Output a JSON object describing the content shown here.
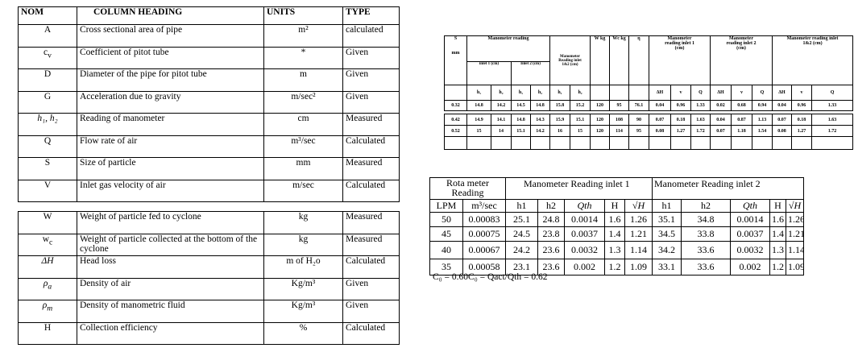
{
  "variables_table": {
    "headers": {
      "nom": "NOM",
      "heading": "COLUMN HEADING",
      "units": "UNITS",
      "type": "TYPE"
    },
    "rows": [
      {
        "nom": "A",
        "sub": "",
        "heading": "Cross sectional area of pipe",
        "units": "m²",
        "type": "calculated"
      },
      {
        "nom": "c",
        "sub": "v",
        "heading": "Coefficient of pitot tube",
        "units": "*",
        "type": "Given"
      },
      {
        "nom": "D",
        "sub": "",
        "heading": "Diameter of the pipe for pitot tube",
        "units": "m",
        "type": "Given"
      },
      {
        "nom": "G",
        "sub": "",
        "heading": "Acceleration due to gravity",
        "units": "m/sec²",
        "type": "Given"
      },
      {
        "nom": "h₁, h₂",
        "sub": "",
        "heading": "Reading of manometer",
        "units": "cm",
        "type": "Measured"
      },
      {
        "nom": "Q",
        "sub": "",
        "heading": "Flow rate of  air",
        "units": "m³/sec",
        "type": "Calculated"
      },
      {
        "nom": "S",
        "sub": "",
        "heading": "Size of particle",
        "units": "mm",
        "type": "Measured"
      },
      {
        "nom": "V",
        "sub": "",
        "heading": "Inlet gas velocity of air",
        "units": "m/sec",
        "type": "Calculated"
      }
    ],
    "rows2": [
      {
        "nom": "W",
        "sub": "",
        "heading": "Weight of particle fed to cyclone",
        "units": "kg",
        "type": "Measured"
      },
      {
        "nom": "w",
        "sub": "c",
        "heading": "Weight of  particle collected at the bottom of the cyclone",
        "units": "kg",
        "type": "Measured"
      },
      {
        "nom": "ΔH",
        "sub": "",
        "heading": "Head loss",
        "units": "m of H₂o",
        "type": "Calculated"
      },
      {
        "nom": "ρ",
        "sub": "a",
        "heading": "Density of air",
        "units": "Kg/m³",
        "type": "Given"
      },
      {
        "nom": "ρ",
        "sub": "m",
        "heading": "Density of manometric fluid",
        "units": "Kg/m³",
        "type": "Given"
      },
      {
        "nom": "H",
        "sub": "",
        "heading": "Collection efficiency",
        "units": "%",
        "type": "Calculated"
      }
    ]
  },
  "experiment_table": {
    "h_s": "S",
    "h_mm": "mm",
    "h_mano": "Manometer reading",
    "h_inlet1": "inlet 1 (cm)",
    "h_inlet2": "Inlet 2 (cm)",
    "h_mano12": "Manometer Reading inlet 1&2 (cm)",
    "h_w": "W kg",
    "h_wc": "Wc kg",
    "h_eta": "η",
    "h_res1": "Manometer reading inlet 1 (cm)",
    "h_res2": "Manometer reading inlet 2 (cm)",
    "h_res12": "Manometer reading inlet 1&2 (cm)",
    "sub_headers": [
      "",
      "h₁",
      "h₂",
      "h₁",
      "h₂",
      "h₁",
      "h₂",
      "",
      "",
      "",
      "ΔH",
      "v",
      "Q",
      "ΔH",
      "v",
      "Q",
      "ΔH",
      "v",
      "Q"
    ],
    "rows": [
      [
        "0.32",
        "14.8",
        "14.2",
        "14.5",
        "14.8",
        "15.8",
        "15.2",
        "120",
        "95",
        "76.1",
        "0.04",
        "0.96",
        "1.33",
        "0.02",
        "0.68",
        "0.94",
        "0.04",
        "0.96",
        "1.33"
      ]
    ],
    "rows2": [
      [
        "0.42",
        "14.9",
        "14.1",
        "14.8",
        "14.3",
        "15.9",
        "15.1",
        "120",
        "108",
        "90",
        "0.07",
        "0.18",
        "1.63",
        "0.04",
        "0.87",
        "1.13",
        "0.07",
        "0.18",
        "1.63"
      ],
      [
        "0.52",
        "15",
        "14",
        "15.1",
        "14.2",
        "16",
        "15",
        "120",
        "114",
        "95",
        "0.08",
        "1.27",
        "1.72",
        "0.07",
        "1.18",
        "1.54",
        "0.08",
        "1.27",
        "1.72"
      ],
      [
        "",
        "",
        "",
        "",
        "",
        "",
        "",
        "",
        "",
        "",
        "",
        "",
        "",
        "",
        "",
        "",
        "",
        "",
        ""
      ]
    ]
  },
  "rotameter_table": {
    "h_rota": "Rota meter Reading",
    "h_inlet1": "Manometer Reading inlet 1",
    "h_inlet2": "Manometer Reading inlet 2",
    "sub_headers": [
      "LPM",
      "m³/sec",
      "h1",
      "h2",
      "Qth",
      "H",
      "√H",
      "h1",
      "h2",
      "Qth",
      "H",
      "√H"
    ],
    "rows": [
      [
        "50",
        "0.00083",
        "25.1",
        "24.8",
        "0.0014",
        "1.6",
        "1.26",
        "35.1",
        "34.8",
        "0.0014",
        "1.6",
        "1.26"
      ],
      [
        "45",
        "0.00075",
        "24.5",
        "23.8",
        "0.0037",
        "1.4",
        "1.21",
        "34.5",
        "33.8",
        "0.0037",
        "1.4",
        "1.21"
      ],
      [
        "40",
        "0.00067",
        "24.2",
        "23.6",
        "0.0032",
        "1.3",
        "1.14",
        "34.2",
        "33.6",
        "0.0032",
        "1.3",
        "1.14"
      ],
      [
        "35",
        "0.00058",
        "23.1",
        "23.6",
        "0.002",
        "1.2",
        "1.09",
        "33.1",
        "33.6",
        "0.002",
        "1.2",
        "1.09"
      ]
    ],
    "footnote": "C₀ = 0.60C₀ = Qact/Qth = 0.62"
  }
}
